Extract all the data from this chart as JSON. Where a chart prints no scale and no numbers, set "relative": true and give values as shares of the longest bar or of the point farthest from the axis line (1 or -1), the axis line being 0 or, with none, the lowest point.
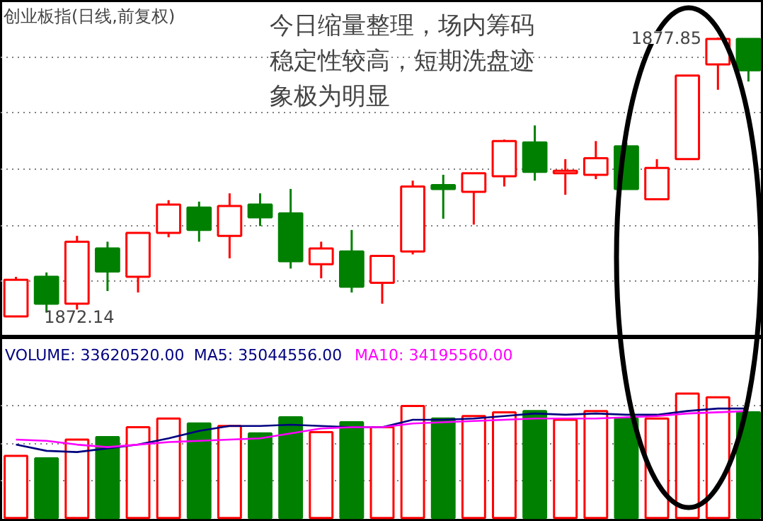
{
  "chart_data": [
    {
      "type": "candlestick",
      "title": "创业板指(日线,前复权)",
      "categories": [
        null,
        null,
        null,
        null,
        null,
        null,
        null,
        null,
        null,
        null,
        null,
        null,
        null,
        null,
        null,
        null,
        null,
        null,
        null,
        null,
        null,
        null,
        null,
        null,
        null
      ],
      "ohlc": [
        [
          1872.14,
          1872.95,
          1872.14,
          1872.89
        ],
        [
          1872.95,
          1873.04,
          1872.22,
          1872.4
        ],
        [
          1872.4,
          1873.79,
          1872.28,
          1873.67
        ],
        [
          1873.53,
          1873.67,
          1872.66,
          1873.06
        ],
        [
          1872.95,
          1873.85,
          1872.63,
          1873.85
        ],
        [
          1873.85,
          1874.52,
          1873.76,
          1874.43
        ],
        [
          1874.37,
          1874.49,
          1873.67,
          1873.91
        ],
        [
          1873.79,
          1874.66,
          1873.33,
          1874.4
        ],
        [
          1874.43,
          1874.66,
          1873.99,
          1874.17
        ],
        [
          1874.25,
          1874.75,
          1873.12,
          1873.27
        ],
        [
          1873.21,
          1873.67,
          1872.92,
          1873.53
        ],
        [
          1873.47,
          1873.91,
          1872.63,
          1872.75
        ],
        [
          1872.83,
          1873.38,
          1872.4,
          1873.38
        ],
        [
          1873.47,
          1874.92,
          1873.41,
          1874.8
        ],
        [
          1874.83,
          1875.04,
          1874.14,
          1874.75
        ],
        [
          1874.69,
          1875.07,
          1874.02,
          1875.07
        ],
        [
          1875.01,
          1875.76,
          1874.8,
          1875.73
        ],
        [
          1875.7,
          1876.05,
          1874.92,
          1875.1
        ],
        [
          1875.07,
          1875.36,
          1874.63,
          1875.12
        ],
        [
          1875.04,
          1875.73,
          1874.95,
          1875.38
        ],
        [
          1875.62,
          1875.7,
          1874.75,
          1874.75
        ],
        [
          1874.54,
          1875.36,
          1874.54,
          1875.18
        ],
        [
          1875.36,
          1877.07,
          1875.36,
          1877.07
        ],
        [
          1877.3,
          1877.85,
          1876.78,
          1877.82
        ],
        [
          1877.82,
          1877.82,
          1876.95,
          1877.18
        ]
      ],
      "colors": [
        "#ff0000",
        "#008000",
        "#ff0000",
        "#008000",
        "#ff0000",
        "#ff0000",
        "#008000",
        "#ff0000",
        "#008000",
        "#008000",
        "#ff0000",
        "#008000",
        "#ff0000",
        "#ff0000",
        "#008000",
        "#ff0000",
        "#ff0000",
        "#008000",
        "#ff0000",
        "#ff0000",
        "#008000",
        "#ff0000",
        "#ff0000",
        "#ff0000",
        "#008000"
      ],
      "grid": "y",
      "annotations": [
        "今日缩量整理，场内筹码",
        "稳定性较高，短期洗盘迹",
        "象极为明显",
        "1877.85",
        "1872.14"
      ]
    },
    {
      "type": "bar",
      "relative": true,
      "categories": [
        null,
        null,
        null,
        null,
        null,
        null,
        null,
        null,
        null,
        null,
        null,
        null,
        null,
        null,
        null,
        null,
        null,
        null,
        null,
        null,
        null,
        null,
        null,
        null,
        null
      ],
      "annotations": [
        "VOLUME: 33620520.00"
      ],
      "series": [
        {
          "type": "bar",
          "colors": [
            "#ff0000",
            "#008000",
            "#ff0000",
            "#008000",
            "#ff0000",
            "#ff0000",
            "#008000",
            "#ff0000",
            "#008000",
            "#008000",
            "#ff0000",
            "#008000",
            "#ff0000",
            "#ff0000",
            "#008000",
            "#ff0000",
            "#ff0000",
            "#008000",
            "#ff0000",
            "#ff0000",
            "#008000",
            "#ff0000",
            "#ff0000",
            "#ff0000",
            "#008000"
          ],
          "values": [
            0.5,
            0.48,
            0.63,
            0.65,
            0.73,
            0.8,
            0.76,
            0.74,
            0.68,
            0.81,
            0.69,
            0.77,
            0.73,
            0.9,
            0.8,
            0.82,
            0.85,
            0.86,
            0.79,
            0.86,
            0.8,
            0.8,
            1,
            0.97,
            0.85
          ]
        },
        {
          "name": "MA5: 35044556.00",
          "type": "line",
          "color": "#000080",
          "values": [
            0.59,
            0.54,
            0.53,
            0.56,
            0.59,
            0.64,
            0.7,
            0.74,
            0.74,
            0.75,
            0.74,
            0.73,
            0.73,
            0.79,
            0.79,
            0.8,
            0.82,
            0.84,
            0.83,
            0.84,
            0.83,
            0.83,
            0.86,
            0.88,
            0.88
          ]
        },
        {
          "name": "MA10: 34195560.00",
          "type": "line",
          "color": "#ff00ff",
          "values": [
            0.63,
            0.62,
            0.59,
            0.57,
            0.59,
            0.61,
            0.62,
            0.63,
            0.64,
            0.68,
            0.72,
            0.73,
            0.73,
            0.76,
            0.77,
            0.78,
            0.79,
            0.8,
            0.8,
            0.8,
            0.81,
            0.82,
            0.84,
            0.85,
            0.86
          ]
        }
      ],
      "legend": "top left",
      "grid": "y"
    }
  ]
}
